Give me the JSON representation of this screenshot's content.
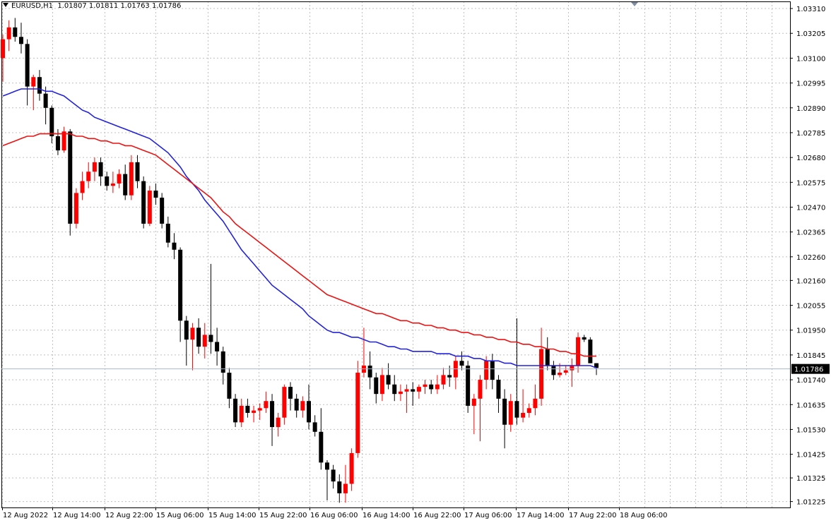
{
  "window": {
    "symbol_timeframe": "EURUSD,H1",
    "ohlc": "1.01807 1.01811 1.01763 1.01786"
  },
  "colors": {
    "bull": "#ff0000",
    "bear": "#000000",
    "ma_fast": "#2222dd",
    "ma_slow": "#ee1111",
    "grid": "#c0c0c0",
    "bid_line": "#a9b6c8",
    "price_label_bg": "#000000"
  },
  "chart_data": {
    "type": "candlestick",
    "symbol": "EURUSD",
    "timeframe": "H1",
    "grid": true,
    "ylim": [
      1.012,
      1.0334
    ],
    "y_ticks": [
      "1.03310",
      "1.03205",
      "1.03100",
      "1.02995",
      "1.02890",
      "1.02785",
      "1.02680",
      "1.02575",
      "1.02470",
      "1.02365",
      "1.02260",
      "1.02160",
      "1.02055",
      "1.01950",
      "1.01845",
      "1.01740",
      "1.01635",
      "1.01530",
      "1.01425",
      "1.01325",
      "1.01225"
    ],
    "x_ticks": [
      "12 Aug 2022",
      "12 Aug 14:00",
      "12 Aug 22:00",
      "15 Aug 06:00",
      "15 Aug 14:00",
      "15 Aug 22:00",
      "16 Aug 06:00",
      "16 Aug 14:00",
      "16 Aug 22:00",
      "17 Aug 06:00",
      "17 Aug 14:00",
      "17 Aug 22:00",
      "18 Aug 06:00"
    ],
    "current_price": "1.01786",
    "candles": [
      [
        1.031,
        1.032,
        1.03,
        1.0318
      ],
      [
        1.0318,
        1.0326,
        1.0313,
        1.0323
      ],
      [
        1.0323,
        1.0327,
        1.0317,
        1.0319
      ],
      [
        1.0319,
        1.0325,
        1.0312,
        1.0316
      ],
      [
        1.0316,
        1.0318,
        1.029,
        1.0298
      ],
      [
        1.0298,
        1.0303,
        1.0288,
        1.0302
      ],
      [
        1.0302,
        1.0305,
        1.0292,
        1.0295
      ],
      [
        1.0295,
        1.0298,
        1.0282,
        1.0289
      ],
      [
        1.0289,
        1.029,
        1.0274,
        1.0277
      ],
      [
        1.0277,
        1.028,
        1.0269,
        1.0271
      ],
      [
        1.0271,
        1.0281,
        1.027,
        1.0279
      ],
      [
        1.0279,
        1.028,
        1.0235,
        1.024
      ],
      [
        1.024,
        1.0255,
        1.0238,
        1.0253
      ],
      [
        1.0253,
        1.0262,
        1.025,
        1.0258
      ],
      [
        1.0258,
        1.0266,
        1.0255,
        1.0262
      ],
      [
        1.0262,
        1.0268,
        1.0258,
        1.0266
      ],
      [
        1.0266,
        1.0268,
        1.0256,
        1.026
      ],
      [
        1.026,
        1.0262,
        1.0254,
        1.0256
      ],
      [
        1.0256,
        1.0262,
        1.0253,
        1.0257
      ],
      [
        1.0257,
        1.0263,
        1.0255,
        1.0261
      ],
      [
        1.0261,
        1.0265,
        1.025,
        1.0252
      ],
      [
        1.0252,
        1.0269,
        1.025,
        1.0266
      ],
      [
        1.0266,
        1.0269,
        1.0255,
        1.0258
      ],
      [
        1.0258,
        1.026,
        1.0238,
        1.024
      ],
      [
        1.024,
        1.0256,
        1.0239,
        1.0254
      ],
      [
        1.0254,
        1.0257,
        1.0248,
        1.0251
      ],
      [
        1.0251,
        1.0253,
        1.0238,
        1.024
      ],
      [
        1.024,
        1.0243,
        1.023,
        1.0232
      ],
      [
        1.0232,
        1.0236,
        1.0225,
        1.0229
      ],
      [
        1.0229,
        1.023,
        1.019,
        1.0199
      ],
      [
        1.0199,
        1.0201,
        1.018,
        1.0191
      ],
      [
        1.0191,
        1.0198,
        1.0178,
        1.0196
      ],
      [
        1.0196,
        1.02,
        1.0185,
        1.0188
      ],
      [
        1.0188,
        1.0198,
        1.0183,
        1.0193
      ],
      [
        1.0193,
        1.0223,
        1.0185,
        1.019
      ],
      [
        1.019,
        1.0196,
        1.018,
        1.0186
      ],
      [
        1.0186,
        1.0188,
        1.0172,
        1.0177
      ],
      [
        1.0177,
        1.0179,
        1.0162,
        1.0166
      ],
      [
        1.0166,
        1.0168,
        1.0154,
        1.0156
      ],
      [
        1.0156,
        1.0166,
        1.0154,
        1.0163
      ],
      [
        1.0163,
        1.0166,
        1.0158,
        1.016
      ],
      [
        1.016,
        1.0163,
        1.0156,
        1.0161
      ],
      [
        1.0161,
        1.0164,
        1.0157,
        1.0162
      ],
      [
        1.0162,
        1.0169,
        1.016,
        1.0165
      ],
      [
        1.0165,
        1.0168,
        1.0146,
        1.0154
      ],
      [
        1.0154,
        1.016,
        1.015,
        1.0158
      ],
      [
        1.0158,
        1.0172,
        1.0155,
        1.0171
      ],
      [
        1.0171,
        1.0173,
        1.0161,
        1.0166
      ],
      [
        1.0166,
        1.0168,
        1.0158,
        1.0161
      ],
      [
        1.0161,
        1.0167,
        1.0158,
        1.0165
      ],
      [
        1.0165,
        1.0172,
        1.0153,
        1.0156
      ],
      [
        1.0156,
        1.0159,
        1.015,
        1.0152
      ],
      [
        1.0152,
        1.0162,
        1.0136,
        1.0139
      ],
      [
        1.0139,
        1.014,
        1.0123,
        1.0136
      ],
      [
        1.0136,
        1.0138,
        1.0128,
        1.0131
      ],
      [
        1.0131,
        1.0134,
        1.0122,
        1.0126
      ],
      [
        1.0126,
        1.0138,
        1.0122,
        1.013
      ],
      [
        1.013,
        1.0145,
        1.0127,
        1.0143
      ],
      [
        1.0143,
        1.0182,
        1.0141,
        1.0177
      ],
      [
        1.0177,
        1.0196,
        1.0175,
        1.018
      ],
      [
        1.018,
        1.0186,
        1.017,
        1.0175
      ],
      [
        1.0175,
        1.0177,
        1.0164,
        1.0168
      ],
      [
        1.0168,
        1.0179,
        1.0165,
        1.0176
      ],
      [
        1.0176,
        1.0181,
        1.017,
        1.0172
      ],
      [
        1.0172,
        1.0176,
        1.0165,
        1.0168
      ],
      [
        1.0168,
        1.0172,
        1.0165,
        1.0169
      ],
      [
        1.0169,
        1.0172,
        1.016,
        1.017
      ],
      [
        1.017,
        1.0173,
        1.0163,
        1.0169
      ],
      [
        1.0169,
        1.0172,
        1.0166,
        1.0171
      ],
      [
        1.0171,
        1.0174,
        1.0168,
        1.0172
      ],
      [
        1.0172,
        1.0174,
        1.0168,
        1.017
      ],
      [
        1.017,
        1.0176,
        1.0168,
        1.0172
      ],
      [
        1.0172,
        1.0179,
        1.017,
        1.0176
      ],
      [
        1.0176,
        1.018,
        1.0171,
        1.0175
      ],
      [
        1.0175,
        1.0184,
        1.017,
        1.0182
      ],
      [
        1.0182,
        1.0186,
        1.0178,
        1.018
      ],
      [
        1.018,
        1.0182,
        1.016,
        1.0163
      ],
      [
        1.0163,
        1.0168,
        1.0151,
        1.0166
      ],
      [
        1.0166,
        1.0176,
        1.0148,
        1.0174
      ],
      [
        1.0174,
        1.0184,
        1.017,
        1.0182
      ],
      [
        1.0182,
        1.0185,
        1.017,
        1.0174
      ],
      [
        1.0174,
        1.0176,
        1.016,
        1.0166
      ],
      [
        1.0166,
        1.017,
        1.0145,
        1.0155
      ],
      [
        1.0155,
        1.0168,
        1.0152,
        1.0165
      ],
      [
        1.0165,
        1.02,
        1.0155,
        1.0158
      ],
      [
        1.0158,
        1.017,
        1.0156,
        1.016
      ],
      [
        1.016,
        1.0164,
        1.0158,
        1.0162
      ],
      [
        1.0162,
        1.0172,
        1.0159,
        1.0166
      ],
      [
        1.0166,
        1.0196,
        1.0163,
        1.0187
      ],
      [
        1.0187,
        1.0192,
        1.0178,
        1.018
      ],
      [
        1.018,
        1.0182,
        1.0174,
        1.0176
      ],
      [
        1.0176,
        1.0181,
        1.0175,
        1.0177
      ],
      [
        1.0177,
        1.018,
        1.0176,
        1.0178
      ],
      [
        1.0178,
        1.0183,
        1.0171,
        1.018
      ],
      [
        1.018,
        1.0194,
        1.0177,
        1.0192
      ],
      [
        1.0192,
        1.0193,
        1.019,
        1.0191
      ],
      [
        1.0191,
        1.0192,
        1.0181,
        1.0181
      ],
      [
        1.0181,
        1.0181,
        1.0176,
        1.0179
      ]
    ],
    "series": [
      {
        "values": [
          1.0294,
          1.0295,
          1.0296,
          1.0297,
          1.0297,
          1.0297,
          1.0297,
          1.0296,
          1.0296,
          1.0295,
          1.0294,
          1.0292,
          1.029,
          1.0288,
          1.0287,
          1.0285,
          1.0284,
          1.0283,
          1.0282,
          1.0281,
          1.028,
          1.0279,
          1.0278,
          1.0277,
          1.0276,
          1.0274,
          1.0272,
          1.027,
          1.0267,
          1.0264,
          1.026,
          1.0257,
          1.0254,
          1.025,
          1.0247,
          1.0244,
          1.0241,
          1.0237,
          1.0233,
          1.0229,
          1.0226,
          1.0223,
          1.022,
          1.0217,
          1.0214,
          1.0212,
          1.021,
          1.0208,
          1.0206,
          1.0204,
          1.0201,
          1.0199,
          1.0197,
          1.0195,
          1.0194,
          1.0194,
          1.0193,
          1.0192,
          1.0192,
          1.0191,
          1.019,
          1.019,
          1.0189,
          1.0188,
          1.0188,
          1.0187,
          1.0187,
          1.0186,
          1.0186,
          1.0186,
          1.0186,
          1.0185,
          1.0185,
          1.0185,
          1.0184,
          1.0184,
          1.0184,
          1.0183,
          1.0183,
          1.0182,
          1.0182,
          1.0182,
          1.0181,
          1.0181,
          1.018,
          1.018,
          1.018,
          1.018,
          1.018,
          1.018,
          1.018,
          1.018,
          1.018,
          1.018,
          1.018,
          1.018,
          1.018,
          1.0179
        ]
      },
      {
        "values": [
          1.0273,
          1.0274,
          1.0275,
          1.0276,
          1.0277,
          1.0277,
          1.0278,
          1.0278,
          1.0278,
          1.0278,
          1.0278,
          1.0278,
          1.0277,
          1.0277,
          1.0276,
          1.0276,
          1.0275,
          1.0275,
          1.0274,
          1.0274,
          1.0273,
          1.0273,
          1.0272,
          1.0271,
          1.027,
          1.0269,
          1.0267,
          1.0265,
          1.0263,
          1.0261,
          1.0259,
          1.0257,
          1.0255,
          1.0253,
          1.0251,
          1.0248,
          1.0245,
          1.0243,
          1.024,
          1.0238,
          1.0236,
          1.0234,
          1.0232,
          1.023,
          1.0228,
          1.0226,
          1.0224,
          1.0222,
          1.022,
          1.0218,
          1.0216,
          1.0214,
          1.0212,
          1.021,
          1.0209,
          1.0208,
          1.0207,
          1.0206,
          1.0205,
          1.0204,
          1.0203,
          1.0202,
          1.0202,
          1.0201,
          1.02,
          1.0199,
          1.0199,
          1.0198,
          1.0198,
          1.0197,
          1.0197,
          1.0196,
          1.0196,
          1.0195,
          1.0195,
          1.0194,
          1.0194,
          1.0193,
          1.0193,
          1.0192,
          1.0192,
          1.0191,
          1.0191,
          1.019,
          1.019,
          1.0189,
          1.0189,
          1.0188,
          1.0188,
          1.0187,
          1.0187,
          1.0186,
          1.0186,
          1.0185,
          1.0185,
          1.0184,
          1.0184,
          1.0184
        ]
      }
    ]
  }
}
